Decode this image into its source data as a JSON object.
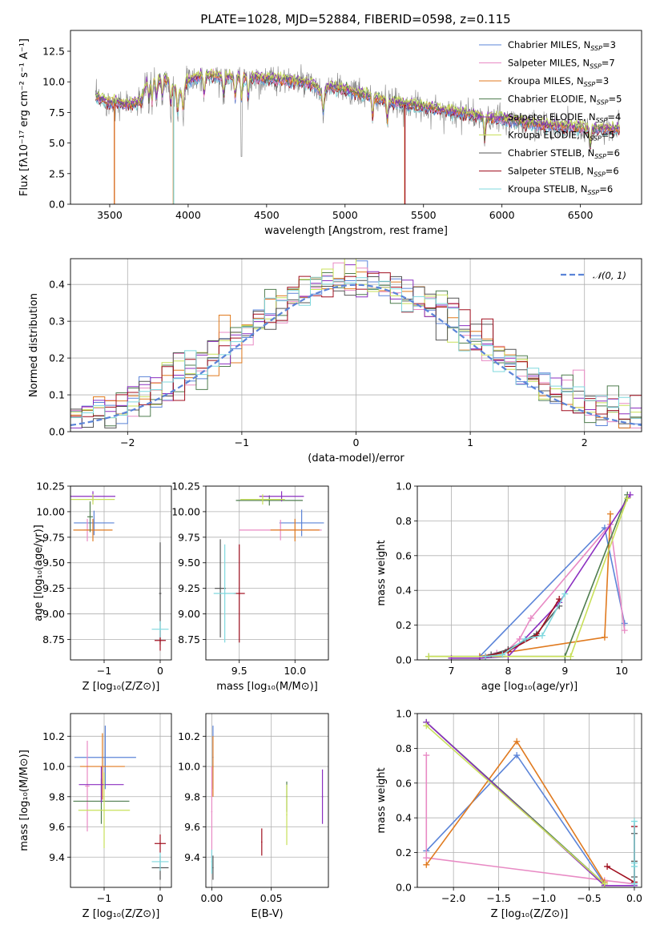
{
  "colors": {
    "Chabrier MILES": "#5b84d8",
    "Salpeter MILES": "#e88ac4",
    "Kroupa MILES": "#e07a1f",
    "Chabrier ELODIE": "#4f7d4f",
    "Salpeter ELODIE": "#8b2fc0",
    "Kroupa ELODIE": "#c8e05a",
    "Chabrier STELIB": "#555555",
    "Salpeter STELIB": "#a00f1f",
    "Kroupa STELIB": "#7fd8de"
  },
  "chart_data": [
    {
      "type": "line",
      "id": "spectrum",
      "title": "PLATE=1028, MJD=52884, FIBERID=0598, z=0.115",
      "xlabel": "wavelength [Angstrom, rest frame]",
      "ylabel": "Flux [f$_\\lambda$10$^{-17}$ erg cm$^{-2}$ s$^{-1}$ A$^{-1}$]",
      "ylabel_display": "Flux [fλ10⁻¹⁷ erg cm⁻² s⁻¹ A⁻¹]",
      "xlim": [
        3250,
        6890
      ],
      "ylim": [
        0,
        14.2
      ],
      "xticks": [
        "3500",
        "4000",
        "4500",
        "5000",
        "5500",
        "6000",
        "6500"
      ],
      "yticks": [
        "0.0",
        "2.5",
        "5.0",
        "7.5",
        "10.0",
        "12.5"
      ],
      "legend_position": "top-right",
      "legend": [
        "Chabrier MILES, N$_{SSP}$=3",
        "Salpeter MILES, N$_{SSP}$=7",
        "Kroupa MILES, N$_{SSP}$=3",
        "Chabrier ELODIE, N$_{SSP}$=5",
        "Salpeter ELODIE, N$_{SSP}$=4",
        "Kroupa ELODIE, N$_{SSP}$=5",
        "Chabrier STELIB, N$_{SSP}$=6",
        "Salpeter STELIB, N$_{SSP}$=6",
        "Kroupa STELIB, N$_{SSP}$=6"
      ],
      "legend_display": [
        [
          "Chabrier MILES, N",
          "SSP",
          "=3"
        ],
        [
          "Salpeter MILES, N",
          "SSP",
          "=7"
        ],
        [
          "Kroupa MILES, N",
          "SSP",
          "=3"
        ],
        [
          "Chabrier ELODIE, N",
          "SSP",
          "=5"
        ],
        [
          "Salpeter ELODIE, N",
          "SSP",
          "=4"
        ],
        [
          "Kroupa ELODIE, N",
          "SSP",
          "=5"
        ],
        [
          "Chabrier STELIB, N",
          "SSP",
          "=6"
        ],
        [
          "Salpeter STELIB, N",
          "SSP",
          "=6"
        ],
        [
          "Kroupa STELIB, N",
          "SSP",
          "=6"
        ]
      ],
      "continuum": [
        [
          3410,
          8.7
        ],
        [
          3500,
          8.3
        ],
        [
          3600,
          8.1
        ],
        [
          3700,
          8.3
        ],
        [
          3740,
          10.0
        ],
        [
          3850,
          10.3
        ],
        [
          3950,
          9.0
        ],
        [
          4000,
          10.0
        ],
        [
          4100,
          10.5
        ],
        [
          4200,
          10.4
        ],
        [
          4300,
          10.3
        ],
        [
          4400,
          10.3
        ],
        [
          4500,
          10.2
        ],
        [
          4600,
          10.1
        ],
        [
          4700,
          10.0
        ],
        [
          4800,
          9.7
        ],
        [
          4850,
          8.9
        ],
        [
          4900,
          9.6
        ],
        [
          5000,
          9.3
        ],
        [
          5100,
          9.0
        ],
        [
          5200,
          8.6
        ],
        [
          5300,
          8.3
        ],
        [
          5400,
          8.1
        ],
        [
          5500,
          7.9
        ],
        [
          5600,
          7.7
        ],
        [
          5700,
          7.5
        ],
        [
          5800,
          7.3
        ],
        [
          5900,
          7.0
        ],
        [
          6000,
          6.9
        ],
        [
          6100,
          6.7
        ],
        [
          6200,
          6.5
        ],
        [
          6300,
          6.4
        ],
        [
          6400,
          6.3
        ],
        [
          6500,
          6.2
        ],
        [
          6600,
          6.1
        ],
        [
          6750,
          6.1
        ]
      ],
      "dropouts": [
        {
          "x": 3530,
          "color": "Salpeter STELIB"
        },
        {
          "x": 3530,
          "color": "Kroupa MILES"
        },
        {
          "x": 3905,
          "color": "Kroupa MILES"
        },
        {
          "x": 3908,
          "color": "Kroupa STELIB"
        },
        {
          "x": 5380,
          "color": "Kroupa MILES"
        },
        {
          "x": 5382,
          "color": "Salpeter STELIB"
        }
      ]
    },
    {
      "type": "histogram",
      "id": "residuals",
      "xlabel": "(data-model)/error",
      "ylabel": "Normed distribution",
      "xlim": [
        -2.5,
        2.5
      ],
      "ylim": [
        0,
        0.47
      ],
      "xticks": [
        "−2",
        "−1",
        "0",
        "1",
        "2"
      ],
      "yticks": [
        "0.0",
        "0.1",
        "0.2",
        "0.3",
        "0.4"
      ],
      "legend_position": "top-right",
      "legend": [
        "$\\mathcal{N}(0, 1)$"
      ],
      "legend_display": "𝒩(0, 1)",
      "bin_width": 0.1,
      "bin_start": -2.5,
      "normal_curve": {
        "mean": 0,
        "sigma": 1
      }
    },
    {
      "type": "errorbar",
      "id": "age_vs_Z",
      "xlabel": "Z [log$_{10}$($Z/Z_\\odot$)]",
      "xlabel_display": "Z [log₁₀(Z/Z⊙)]",
      "ylabel": "age  [log$_{10}$($age/yr$)]",
      "ylabel_display": "age  [log₁₀(age/yr)]",
      "xlim": [
        -1.6,
        0.2
      ],
      "ylim": [
        8.55,
        10.25
      ],
      "xticks": [
        "−1",
        "0"
      ],
      "yticks": [
        "8.75",
        "9.00",
        "9.25",
        "9.50",
        "9.75",
        "10.00",
        "10.25"
      ],
      "points": [
        {
          "model": "Chabrier MILES",
          "x": -1.18,
          "xerr": 0.36,
          "y": 9.89,
          "yerr": 0.12
        },
        {
          "model": "Salpeter MILES",
          "x": -1.3,
          "xerr": 0.06,
          "y": 9.82,
          "yerr": 0.11
        },
        {
          "model": "Kroupa MILES",
          "x": -1.2,
          "xerr": 0.35,
          "y": 9.82,
          "yerr": 0.11
        },
        {
          "model": "Chabrier ELODIE",
          "x": -1.25,
          "xerr": 0.05,
          "y": 9.95,
          "yerr": 0.15
        },
        {
          "model": "Salpeter ELODIE",
          "x": -1.2,
          "xerr": 0.4,
          "y": 10.15,
          "yerr": 0.05
        },
        {
          "model": "Kroupa ELODIE",
          "x": -1.2,
          "xerr": 0.39,
          "y": 10.12,
          "yerr": 0.05
        },
        {
          "model": "Chabrier STELIB",
          "x": 0.0,
          "xerr": 0.02,
          "y": 9.2,
          "yerr": 0.5
        },
        {
          "model": "Salpeter STELIB",
          "x": 0.0,
          "xerr": 0.1,
          "y": 8.74,
          "yerr": 0.1
        },
        {
          "model": "Kroupa STELIB",
          "x": 0.0,
          "xerr": 0.15,
          "y": 8.85,
          "yerr": 0.08
        }
      ]
    },
    {
      "type": "errorbar",
      "id": "age_vs_mass",
      "xlabel": "mass [log$_{10}$($M/M_\\odot$)]",
      "xlabel_display": "mass [log₁₀(M/M⊙)]",
      "xlim": [
        9.2,
        10.3
      ],
      "ylim": [
        8.55,
        10.25
      ],
      "xticks": [
        "9.5",
        "10.0"
      ],
      "yticks": [
        "8.75",
        "9.00",
        "9.25",
        "9.50",
        "9.75",
        "10.00",
        "10.25"
      ],
      "points": [
        {
          "model": "Chabrier MILES",
          "x": 10.06,
          "xerr": 0.2,
          "y": 9.89,
          "yerr": 0.13
        },
        {
          "model": "Salpeter MILES",
          "x": 9.87,
          "xerr": 0.37,
          "y": 9.82,
          "yerr": 0.1
        },
        {
          "model": "Kroupa MILES",
          "x": 10.0,
          "xerr": 0.22,
          "y": 9.82,
          "yerr": 0.11
        },
        {
          "model": "Chabrier ELODIE",
          "x": 9.77,
          "xerr": 0.3,
          "y": 10.11,
          "yerr": 0.05
        },
        {
          "model": "Salpeter ELODIE",
          "x": 9.88,
          "xerr": 0.2,
          "y": 10.15,
          "yerr": 0.05
        },
        {
          "model": "Kroupa ELODIE",
          "x": 9.71,
          "xerr": 0.2,
          "y": 10.12,
          "yerr": 0.05
        },
        {
          "model": "Chabrier STELIB",
          "x": 9.33,
          "xerr": 0.05,
          "y": 9.25,
          "yerr": 0.48
        },
        {
          "model": "Salpeter STELIB",
          "x": 9.5,
          "xerr": 0.05,
          "y": 9.2,
          "yerr": 0.48
        },
        {
          "model": "Kroupa STELIB",
          "x": 9.37,
          "xerr": 0.1,
          "y": 9.2,
          "yerr": 0.48
        }
      ]
    },
    {
      "type": "line",
      "id": "weight_vs_age",
      "xlabel": "age  [log$_{10}$($age/yr$)]",
      "xlabel_display": "age  [log₁₀(age/yr)]",
      "ylabel": "mass weight",
      "xlim": [
        6.4,
        10.35
      ],
      "ylim": [
        0,
        1
      ],
      "xticks": [
        "7",
        "8",
        "9",
        "10"
      ],
      "yticks": [
        "0.0",
        "0.2",
        "0.4",
        "0.6",
        "0.8",
        "1.0"
      ],
      "series": [
        {
          "model": "Chabrier MILES",
          "x": [
            7.5,
            9.7,
            10.05
          ],
          "y": [
            0.02,
            0.76,
            0.21
          ]
        },
        {
          "model": "Salpeter MILES",
          "x": [
            7.5,
            7.8,
            8.0,
            8.2,
            8.4,
            9.8,
            10.05
          ],
          "y": [
            0.02,
            0.04,
            0.06,
            0.12,
            0.24,
            0.78,
            0.17
          ]
        },
        {
          "model": "Kroupa MILES",
          "x": [
            7.5,
            9.7,
            9.8
          ],
          "y": [
            0.02,
            0.13,
            0.84
          ]
        },
        {
          "model": "Chabrier ELODIE",
          "x": [
            6.6,
            9.0,
            10.1
          ],
          "y": [
            0.02,
            0.02,
            0.95
          ]
        },
        {
          "model": "Salpeter ELODIE",
          "x": [
            7.0,
            7.5,
            8.0,
            8.9,
            10.15
          ],
          "y": [
            0.01,
            0.01,
            0.02,
            0.33,
            0.95
          ]
        },
        {
          "model": "Kroupa ELODIE",
          "x": [
            6.6,
            9.1,
            10.1
          ],
          "y": [
            0.02,
            0.02,
            0.93
          ]
        },
        {
          "model": "Chabrier STELIB",
          "x": [
            7.7,
            8.0,
            8.5,
            8.9
          ],
          "y": [
            0.03,
            0.06,
            0.15,
            0.31
          ]
        },
        {
          "model": "Salpeter STELIB",
          "x": [
            7.6,
            8.0,
            8.5,
            8.9
          ],
          "y": [
            0.02,
            0.05,
            0.14,
            0.35
          ]
        },
        {
          "model": "Kroupa STELIB",
          "x": [
            7.6,
            7.9,
            8.3,
            8.6,
            9.0
          ],
          "y": [
            0.02,
            0.03,
            0.12,
            0.14,
            0.38
          ]
        }
      ]
    },
    {
      "type": "errorbar",
      "id": "mass_vs_Z",
      "xlabel": "Z [log$_{10}$($Z/Z_\\odot$)]",
      "xlabel_display": "Z [log₁₀(Z/Z⊙)]",
      "ylabel": "mass [log$_{10}$($M/M_\\odot$)]",
      "ylabel_display": "mass [log₁₀(M/M⊙)]",
      "xlim": [
        -1.6,
        0.2
      ],
      "ylim": [
        9.2,
        10.35
      ],
      "xticks": [
        "−1",
        "0"
      ],
      "yticks": [
        "9.4",
        "9.6",
        "9.8",
        "10.0",
        "10.2"
      ],
      "points": [
        {
          "model": "Chabrier MILES",
          "x": -0.98,
          "xerr": 0.55,
          "y": 10.06,
          "yerr": 0.21
        },
        {
          "model": "Salpeter MILES",
          "x": -1.3,
          "xerr": 0.04,
          "y": 9.87,
          "yerr": 0.3
        },
        {
          "model": "Kroupa MILES",
          "x": -1.03,
          "xerr": 0.4,
          "y": 10.0,
          "yerr": 0.22
        },
        {
          "model": "Chabrier ELODIE",
          "x": -1.05,
          "xerr": 0.5,
          "y": 9.77,
          "yerr": 0.15
        },
        {
          "model": "Salpeter ELODIE",
          "x": -1.05,
          "xerr": 0.4,
          "y": 9.88,
          "yerr": 0.12
        },
        {
          "model": "Kroupa ELODIE",
          "x": -1.0,
          "xerr": 0.46,
          "y": 9.71,
          "yerr": 0.25
        },
        {
          "model": "Chabrier STELIB",
          "x": 0.0,
          "xerr": 0.15,
          "y": 9.33,
          "yerr": 0.08
        },
        {
          "model": "Salpeter STELIB",
          "x": 0.0,
          "xerr": 0.1,
          "y": 9.49,
          "yerr": 0.06
        },
        {
          "model": "Kroupa STELIB",
          "x": 0.0,
          "xerr": 0.15,
          "y": 9.37,
          "yerr": 0.06
        }
      ]
    },
    {
      "type": "errorbar",
      "id": "mass_vs_EBV",
      "xlabel": "E(B-V)",
      "xlim": [
        -0.005,
        0.098
      ],
      "ylim": [
        9.2,
        10.35
      ],
      "xticks": [
        "0.00",
        "0.05"
      ],
      "yticks": [
        "9.4",
        "9.6",
        "9.8",
        "10.0",
        "10.2"
      ],
      "points": [
        {
          "model": "Chabrier MILES",
          "x": 0.001,
          "xerr": 0,
          "y": 10.06,
          "yerr": 0.21
        },
        {
          "model": "Salpeter MILES",
          "x": 0.0,
          "xerr": 0,
          "y": 9.7,
          "yerr": 0.3
        },
        {
          "model": "Kroupa MILES",
          "x": 0.001,
          "xerr": 0,
          "y": 10.0,
          "yerr": 0.2
        },
        {
          "model": "Chabrier ELODIE",
          "x": 0.063,
          "xerr": 0,
          "y": 9.8,
          "yerr": 0.1
        },
        {
          "model": "Salpeter ELODIE",
          "x": 0.093,
          "xerr": 0,
          "y": 9.8,
          "yerr": 0.18
        },
        {
          "model": "Kroupa ELODIE",
          "x": 0.063,
          "xerr": 0,
          "y": 9.68,
          "yerr": 0.2
        },
        {
          "model": "Chabrier STELIB",
          "x": 0.001,
          "xerr": 0,
          "y": 9.33,
          "yerr": 0.08
        },
        {
          "model": "Salpeter STELIB",
          "x": 0.042,
          "xerr": 0,
          "y": 9.5,
          "yerr": 0.09
        },
        {
          "model": "Kroupa STELIB",
          "x": 0.0,
          "xerr": 0,
          "y": 9.37,
          "yerr": 0.08
        }
      ]
    },
    {
      "type": "line",
      "id": "weight_vs_Z",
      "xlabel": "Z [log$_{10}$($Z/Z_\\odot$)]",
      "xlabel_display": "Z [log₁₀(Z/Z⊙)]",
      "ylabel": "mass weight",
      "xlim": [
        -2.4,
        0.08
      ],
      "ylim": [
        0,
        1
      ],
      "xticks": [
        "−2.0",
        "−1.5",
        "−1.0",
        "−0.5",
        "0.0"
      ],
      "yticks": [
        "0.0",
        "0.2",
        "0.4",
        "0.6",
        "0.8",
        "1.0"
      ],
      "series": [
        {
          "model": "Chabrier MILES",
          "x": [
            -2.3,
            -1.3,
            -0.33
          ],
          "y": [
            0.21,
            0.76,
            0.02
          ]
        },
        {
          "model": "Salpeter MILES",
          "x": [
            -2.3,
            -2.3,
            -2.3,
            -0.33,
            0.0
          ],
          "y": [
            0.76,
            0.17,
            0.17,
            0.04,
            0.02
          ]
        },
        {
          "model": "Kroupa MILES",
          "x": [
            -2.3,
            -1.3,
            -0.33
          ],
          "y": [
            0.13,
            0.84,
            0.03
          ]
        },
        {
          "model": "Chabrier ELODIE",
          "x": [
            -2.3,
            -0.33
          ],
          "y": [
            0.95,
            0.02
          ]
        },
        {
          "model": "Salpeter ELODIE",
          "x": [
            -2.3,
            -0.33,
            0.0
          ],
          "y": [
            0.95,
            0.01,
            0.01
          ]
        },
        {
          "model": "Kroupa ELODIE",
          "x": [
            -2.3,
            -0.33
          ],
          "y": [
            0.93,
            0.02
          ]
        },
        {
          "model": "Chabrier STELIB",
          "x": [
            0.0,
            0.0,
            0.0,
            0.0
          ],
          "y": [
            0.03,
            0.06,
            0.15,
            0.31
          ]
        },
        {
          "model": "Salpeter STELIB",
          "x": [
            -0.3,
            0.0,
            0.0
          ],
          "y": [
            0.12,
            0.03,
            0.35
          ]
        },
        {
          "model": "Kroupa STELIB",
          "x": [
            0.0,
            0.0,
            0.0,
            0.0
          ],
          "y": [
            0.02,
            0.12,
            0.14,
            0.38
          ]
        }
      ]
    }
  ]
}
